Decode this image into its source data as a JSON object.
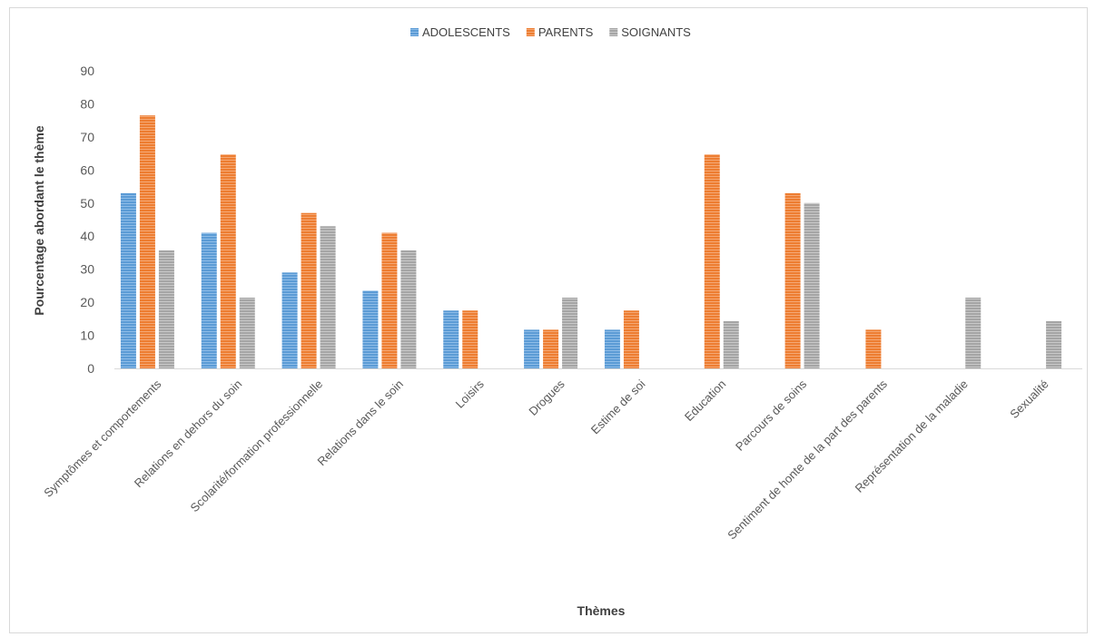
{
  "chart_data": {
    "type": "bar",
    "title": "",
    "xlabel": "Thèmes",
    "ylabel": "Pourcentage abordant le thème",
    "ylim": [
      0,
      90
    ],
    "yticks": [
      0,
      10,
      20,
      30,
      40,
      50,
      60,
      70,
      80,
      90
    ],
    "grid": false,
    "legend_position": "top-center",
    "categories": [
      "Symptômes et comportements",
      "Relations en dehors du soin",
      "Scolarité/formation professionnelle",
      "Relations dans le soin",
      "Loisirs",
      "Drogues",
      "Estime de soi",
      "Education",
      "Parcours de soins",
      "Sentiment de honte de la part des parents",
      "Représentation de la maladie",
      "Sexualité"
    ],
    "series": [
      {
        "name": "ADOLESCENTS",
        "color": "#5b9bd5",
        "values": [
          53,
          41,
          29,
          23.5,
          17.5,
          11.7,
          11.7,
          0,
          0,
          0,
          0,
          0
        ]
      },
      {
        "name": "PARENTS",
        "color": "#ed7d31",
        "values": [
          76.5,
          64.7,
          47,
          41,
          17.5,
          11.7,
          17.5,
          64.7,
          53,
          11.7,
          0,
          0
        ]
      },
      {
        "name": "SOIGNANTS",
        "color": "#a5a5a5",
        "values": [
          35.7,
          21.4,
          43,
          35.7,
          0,
          21.4,
          0,
          14.3,
          50,
          0,
          21.4,
          14.3
        ]
      }
    ]
  }
}
